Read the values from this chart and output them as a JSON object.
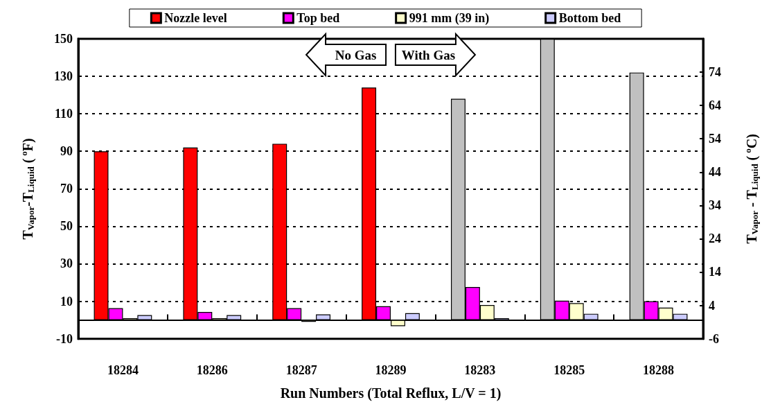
{
  "chart_data": {
    "type": "bar",
    "categories": [
      "18284",
      "18286",
      "18287",
      "18289",
      "18283",
      "18285",
      "18288"
    ],
    "xlabel": "Run Numbers (Total Reflux, L/V = 1)",
    "ylabel": "T$_{Vapor}$-T$_{Liquid}$ ($^{o}$F)",
    "y2label": "T$_{Vapor}$ - T$_{Liquid}$ ($^{o}$C)",
    "series": [
      {
        "name": "Nozzle level",
        "color": "#ff0000",
        "colors": [
          "#ff0000",
          "#ff0000",
          "#ff0000",
          "#ff0000",
          "#c0c0c0",
          "#c0c0c0",
          "#c0c0c0"
        ],
        "values": [
          90,
          92,
          94,
          124,
          118,
          150,
          132
        ]
      },
      {
        "name": "Top bed",
        "color": "#ff00ff",
        "values": [
          6.3,
          4.3,
          6.3,
          7.3,
          17.6,
          10.3,
          10
        ]
      },
      {
        "name": "991 mm (39 in)",
        "color": "#ffffcc",
        "values": [
          1,
          1,
          -1,
          -3.3,
          8,
          9,
          6.6
        ]
      },
      {
        "name": "Bottom bed",
        "color": "#ccccff",
        "values": [
          2.6,
          2.6,
          3,
          3.6,
          1,
          3.3,
          3.3
        ]
      }
    ],
    "ylim": [
      -10,
      150
    ],
    "yticks": [
      -10,
      10,
      30,
      50,
      70,
      90,
      110,
      130,
      150
    ],
    "y2lim": [
      -6,
      84
    ],
    "y2ticks": [
      -6,
      4,
      14,
      24,
      34,
      44,
      54,
      64,
      74,
      {
        "value": 84,
        "label": null
      }
    ],
    "annotations": [
      "No Gas",
      "With Gas"
    ],
    "grid": "y",
    "legend": "top"
  }
}
